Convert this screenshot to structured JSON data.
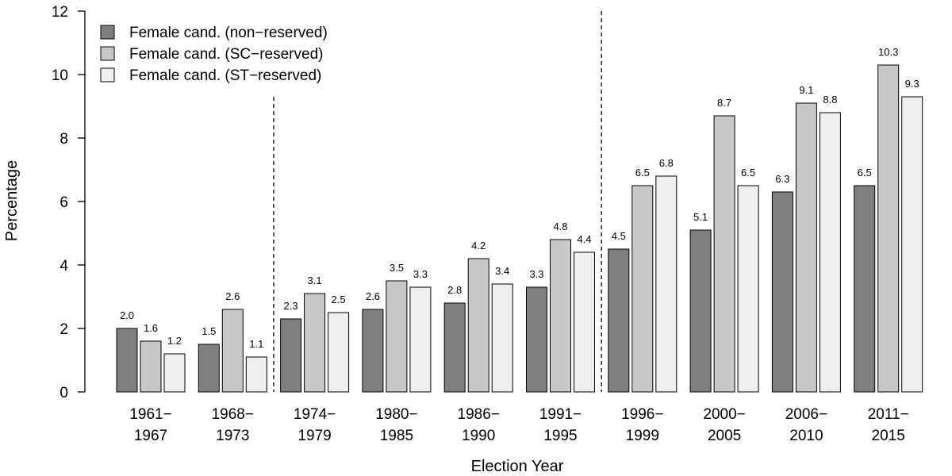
{
  "chart_data": {
    "type": "bar",
    "title": "",
    "xlabel": "Election Year",
    "ylabel": "Percentage",
    "ylim": [
      0,
      12
    ],
    "yticks": [
      0,
      2,
      4,
      6,
      8,
      10,
      12
    ],
    "grid": false,
    "legend_position": "top-left",
    "categories": [
      [
        "1961−",
        "1967"
      ],
      [
        "1968−",
        "1973"
      ],
      [
        "1974−",
        "1979"
      ],
      [
        "1980−",
        "1985"
      ],
      [
        "1986−",
        "1990"
      ],
      [
        "1991−",
        "1995"
      ],
      [
        "1996−",
        "1999"
      ],
      [
        "2000−",
        "2005"
      ],
      [
        "2006−",
        "2010"
      ],
      [
        "2011−",
        "2015"
      ]
    ],
    "series": [
      {
        "name": "Female cand. (non−reserved)",
        "color": "#7f7f7f",
        "values": [
          2.0,
          1.5,
          2.3,
          2.6,
          2.8,
          3.3,
          4.5,
          5.1,
          6.3,
          6.5
        ],
        "labels": [
          "2.0",
          "1.5",
          "2.3",
          "2.6",
          "2.8",
          "3.3",
          "4.5",
          "5.1",
          "6.3",
          "6.5"
        ]
      },
      {
        "name": "Female cand. (SC−reserved)",
        "color": "#c8c8c8",
        "values": [
          1.6,
          2.6,
          3.1,
          3.5,
          4.2,
          4.8,
          6.5,
          8.7,
          9.1,
          10.3
        ],
        "labels": [
          "1.6",
          "2.6",
          "3.1",
          "3.5",
          "4.2",
          "4.8",
          "6.5",
          "8.7",
          "9.1",
          "10.3"
        ]
      },
      {
        "name": "Female cand. (ST−reserved)",
        "color": "#efefef",
        "values": [
          1.2,
          1.1,
          2.5,
          3.3,
          3.4,
          4.4,
          6.8,
          6.5,
          8.8,
          9.3
        ],
        "labels": [
          "1.2",
          "1.1",
          "2.5",
          "3.3",
          "3.4",
          "4.4",
          "6.8",
          "6.5",
          "8.8",
          "9.3"
        ]
      }
    ],
    "dividers_after_category": [
      1,
      5
    ],
    "divider_style": "dashed"
  }
}
